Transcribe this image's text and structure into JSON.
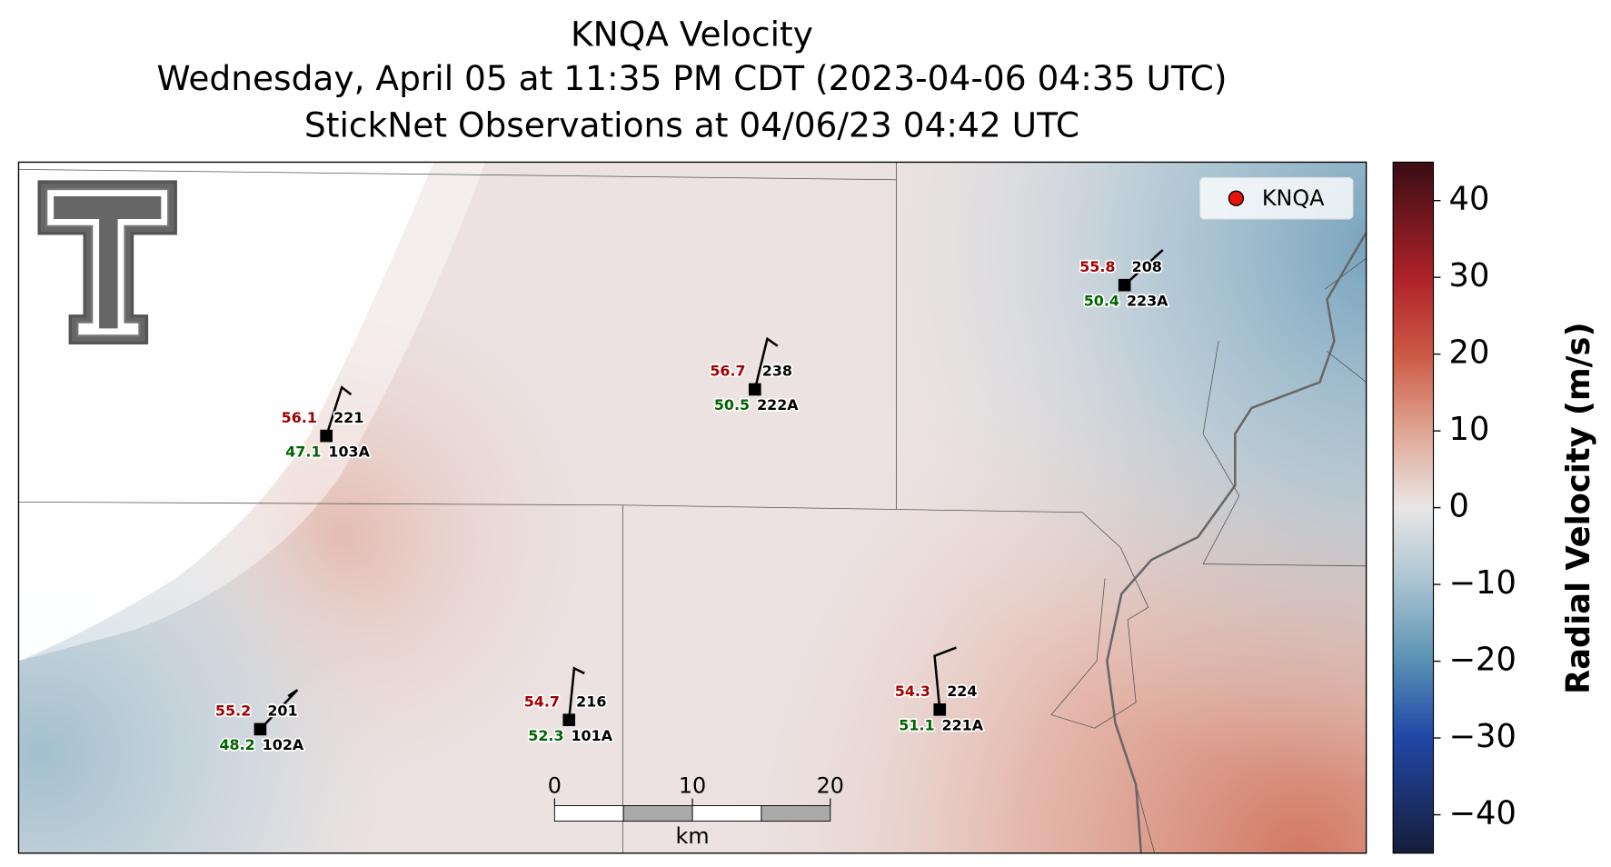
{
  "title": {
    "lines": [
      "KNQA Velocity",
      "Wednesday, April 05 at 11:35 PM CDT (2023-04-06 04:35 UTC)",
      "StickNet Observations at 04/06/23 04:42 UTC"
    ]
  },
  "legend": {
    "label": "KNQA",
    "color": "#e8120c"
  },
  "colorbar": {
    "label": "Radial Velocity (m/s)",
    "clim": [
      -45,
      45
    ],
    "ticks": [
      40,
      30,
      20,
      10,
      0,
      {
        "value": -10,
        "label": "−10"
      },
      {
        "value": -20,
        "label": "−20"
      },
      {
        "value": -30,
        "label": "−30"
      },
      {
        "value": -40,
        "label": "−40"
      }
    ]
  },
  "stations": [
    {
      "temperature": 56.1,
      "dewpoint": 47.1,
      "id_top": "221",
      "id_bottom": "103A"
    },
    {
      "temperature": 56.7,
      "dewpoint": 50.5,
      "id_top": "238",
      "id_bottom": "222A"
    },
    {
      "temperature": 55.8,
      "dewpoint": 50.4,
      "id_top": "208",
      "id_bottom": "223A"
    },
    {
      "temperature": 55.2,
      "dewpoint": 48.2,
      "id_top": "201",
      "id_bottom": "102A"
    },
    {
      "temperature": 54.7,
      "dewpoint": 52.3,
      "id_top": "216",
      "id_bottom": "101A"
    },
    {
      "temperature": 54.3,
      "dewpoint": 51.1,
      "id_top": "224",
      "id_bottom": "221A"
    }
  ],
  "temperature_color": "#a00000",
  "dewpoint_color": "#006400",
  "scale_bar": {
    "ticks": [
      0,
      10,
      20
    ],
    "unit": "km"
  }
}
